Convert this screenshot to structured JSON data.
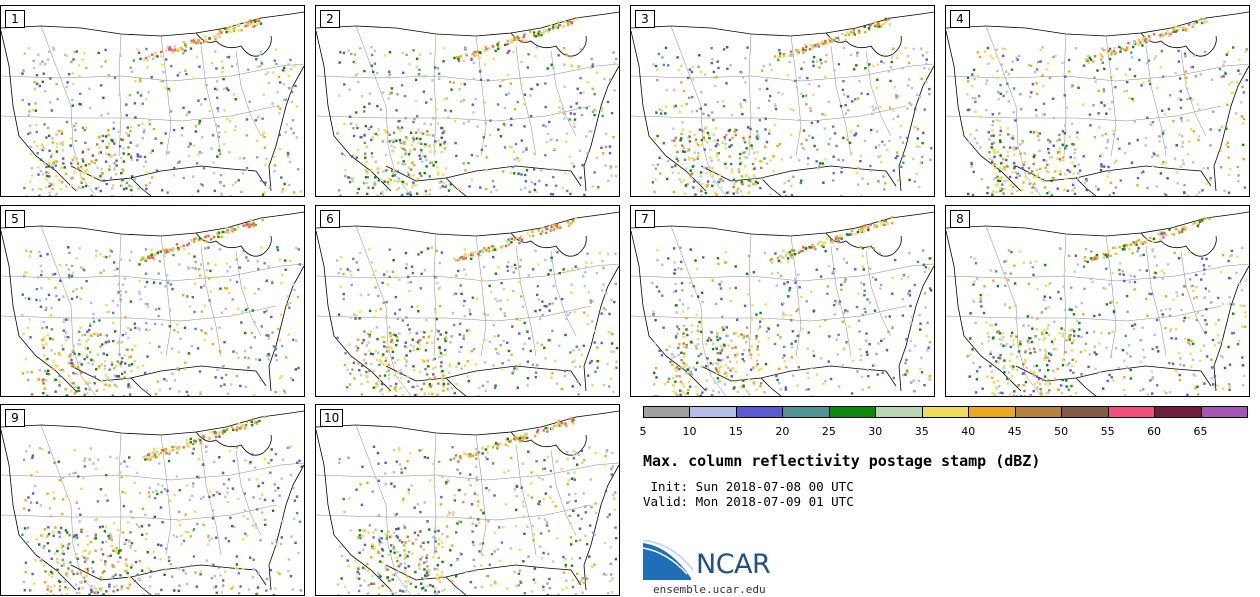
{
  "panels": [
    "1",
    "2",
    "3",
    "4",
    "5",
    "6",
    "7",
    "8",
    "9",
    "10"
  ],
  "colorbar": {
    "colors": [
      "#a0a0a0",
      "#b4bde8",
      "#5a5ad2",
      "#4e9494",
      "#0a8a0a",
      "#b9d7b4",
      "#f0dc5a",
      "#ebaa1e",
      "#b4823c",
      "#825a46",
      "#f0507d",
      "#6e1e3c",
      "#a555b4"
    ],
    "ticks": [
      "5",
      "10",
      "15",
      "20",
      "25",
      "30",
      "35",
      "40",
      "45",
      "50",
      "55",
      "60",
      "65"
    ]
  },
  "title": "Max. column reflectivity postage stamp (dBZ)",
  "init": " Init: Sun 2018-07-08 00 UTC",
  "valid": "Valid: Mon 2018-07-09 01 UTC",
  "logo_text": "NCAR",
  "url": "ensemble.ucar.edu",
  "colors": {
    "logo_blue": "#1f4f8c",
    "logo_light": "#3c8ad2"
  }
}
